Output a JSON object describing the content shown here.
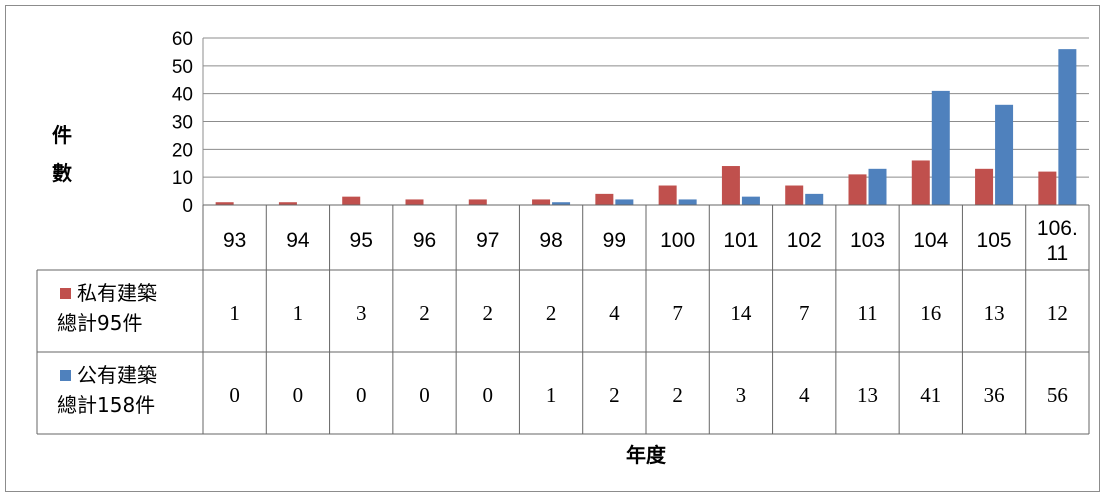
{
  "chart_data": {
    "type": "bar",
    "categories": [
      "93",
      "94",
      "95",
      "96",
      "97",
      "98",
      "99",
      "100",
      "101",
      "102",
      "103",
      "104",
      "105",
      "106.11"
    ],
    "series": [
      {
        "name": "私有建築總計95件",
        "name_lines": [
          "私有建築",
          "總計95件"
        ],
        "color": "#C0504D",
        "values": [
          1,
          1,
          3,
          2,
          2,
          2,
          4,
          7,
          14,
          7,
          11,
          16,
          13,
          12
        ]
      },
      {
        "name": "公有建築總計158件",
        "name_lines": [
          "公有建築",
          "總計158件"
        ],
        "color": "#4F81BD",
        "values": [
          0,
          0,
          0,
          0,
          0,
          1,
          2,
          2,
          3,
          4,
          13,
          41,
          36,
          56
        ]
      }
    ],
    "ylabel": "件數",
    "ylabel_chars": [
      "件",
      "數"
    ],
    "xlabel": "年度",
    "ylim": [
      0,
      60
    ],
    "yticks": [
      0,
      10,
      20,
      30,
      40,
      50,
      60
    ],
    "grid": true,
    "legend": "data-table"
  }
}
